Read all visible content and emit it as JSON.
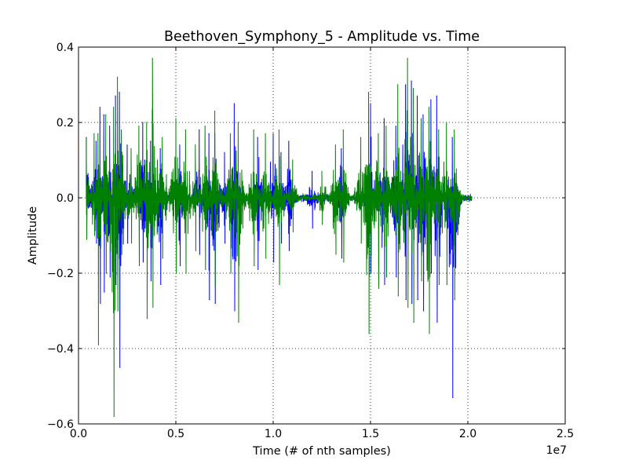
{
  "chart_data": {
    "type": "line",
    "title": "Beethoven_Symphony_5 - Amplitude vs. Time",
    "xlabel": "Time (# of nth samples)",
    "ylabel": "Amplitude",
    "x_offset_label": "1e7",
    "xlim": [
      0,
      25000000
    ],
    "ylim": [
      -0.6,
      0.4
    ],
    "xticks": [
      0,
      5000000,
      10000000,
      15000000,
      20000000,
      25000000
    ],
    "xtick_labels": [
      "0.0",
      "0.5",
      "1.0",
      "1.5",
      "2.0",
      "2.5"
    ],
    "yticks": [
      -0.6,
      -0.4,
      -0.2,
      0.0,
      0.2,
      0.4
    ],
    "ytick_labels": [
      "−0.6",
      "−0.4",
      "−0.2",
      "0.0",
      "0.2",
      "0.4"
    ],
    "grid": true,
    "legend": false,
    "signal_extent": [
      400000,
      20200000
    ],
    "series": [
      {
        "color": "#0000ff",
        "peaks": [
          {
            "x": 400000,
            "min": -0.07,
            "max": 0.16
          },
          {
            "x": 900000,
            "min": -0.12,
            "max": 0.15
          },
          {
            "x": 1100000,
            "min": -0.28,
            "max": 0.24
          },
          {
            "x": 1300000,
            "min": -0.25,
            "max": 0.22
          },
          {
            "x": 1600000,
            "min": -0.21,
            "max": 0.19
          },
          {
            "x": 1900000,
            "min": -0.23,
            "max": 0.27
          },
          {
            "x": 2100000,
            "min": -0.45,
            "max": 0.28
          },
          {
            "x": 2500000,
            "min": -0.12,
            "max": 0.14
          },
          {
            "x": 3300000,
            "min": -0.17,
            "max": 0.2
          },
          {
            "x": 3400000,
            "min": -0.08,
            "max": 0.1
          },
          {
            "x": 3700000,
            "min": -0.22,
            "max": 0.15
          },
          {
            "x": 4200000,
            "min": -0.23,
            "max": 0.13
          },
          {
            "x": 5200000,
            "min": -0.18,
            "max": 0.14
          },
          {
            "x": 6200000,
            "min": -0.15,
            "max": 0.18
          },
          {
            "x": 6700000,
            "min": -0.27,
            "max": 0.17
          },
          {
            "x": 7000000,
            "min": -0.28,
            "max": 0.17
          },
          {
            "x": 7500000,
            "min": -0.12,
            "max": 0.12
          },
          {
            "x": 8000000,
            "min": -0.3,
            "max": 0.25
          },
          {
            "x": 9200000,
            "min": -0.19,
            "max": 0.16
          },
          {
            "x": 10000000,
            "min": -0.17,
            "max": 0.17
          },
          {
            "x": 10400000,
            "min": -0.12,
            "max": 0.12
          },
          {
            "x": 10800000,
            "min": -0.14,
            "max": 0.15
          },
          {
            "x": 12000000,
            "min": -0.08,
            "max": 0.07
          },
          {
            "x": 13500000,
            "min": -0.16,
            "max": 0.13
          },
          {
            "x": 15000000,
            "min": -0.2,
            "max": 0.25
          },
          {
            "x": 15700000,
            "min": -0.23,
            "max": 0.21
          },
          {
            "x": 16300000,
            "min": -0.21,
            "max": 0.19
          },
          {
            "x": 16800000,
            "min": -0.27,
            "max": 0.3
          },
          {
            "x": 17100000,
            "min": -0.28,
            "max": 0.31
          },
          {
            "x": 17400000,
            "min": -0.27,
            "max": 0.27
          },
          {
            "x": 17700000,
            "min": -0.3,
            "max": 0.22
          },
          {
            "x": 18100000,
            "min": -0.2,
            "max": 0.26
          },
          {
            "x": 18400000,
            "min": -0.33,
            "max": 0.27
          },
          {
            "x": 19200000,
            "min": -0.53,
            "max": 0.16
          }
        ]
      },
      {
        "color": "#008000",
        "peaks": [
          {
            "x": 400000,
            "min": -0.11,
            "max": 0.16
          },
          {
            "x": 800000,
            "min": -0.1,
            "max": 0.17
          },
          {
            "x": 1000000,
            "min": -0.39,
            "max": 0.17
          },
          {
            "x": 1400000,
            "min": -0.2,
            "max": 0.22
          },
          {
            "x": 1800000,
            "min": -0.58,
            "max": 0.24
          },
          {
            "x": 2000000,
            "min": -0.3,
            "max": 0.32
          },
          {
            "x": 2200000,
            "min": -0.15,
            "max": 0.18
          },
          {
            "x": 2700000,
            "min": -0.12,
            "max": 0.13
          },
          {
            "x": 3100000,
            "min": -0.18,
            "max": 0.19
          },
          {
            "x": 3500000,
            "min": -0.32,
            "max": 0.2
          },
          {
            "x": 3800000,
            "min": -0.29,
            "max": 0.37
          },
          {
            "x": 4300000,
            "min": -0.16,
            "max": 0.16
          },
          {
            "x": 5000000,
            "min": -0.2,
            "max": 0.21
          },
          {
            "x": 5500000,
            "min": -0.2,
            "max": 0.18
          },
          {
            "x": 6000000,
            "min": -0.14,
            "max": 0.14
          },
          {
            "x": 6500000,
            "min": -0.19,
            "max": 0.19
          },
          {
            "x": 7000000,
            "min": -0.23,
            "max": 0.23
          },
          {
            "x": 7800000,
            "min": -0.2,
            "max": 0.17
          },
          {
            "x": 8200000,
            "min": -0.33,
            "max": 0.2
          },
          {
            "x": 9000000,
            "min": -0.18,
            "max": 0.18
          },
          {
            "x": 9600000,
            "min": -0.16,
            "max": 0.17
          },
          {
            "x": 10300000,
            "min": -0.23,
            "max": 0.18
          },
          {
            "x": 11000000,
            "min": -0.09,
            "max": 0.1
          },
          {
            "x": 12500000,
            "min": -0.07,
            "max": 0.07
          },
          {
            "x": 13200000,
            "min": -0.15,
            "max": 0.14
          },
          {
            "x": 13600000,
            "min": -0.17,
            "max": 0.18
          },
          {
            "x": 14500000,
            "min": -0.12,
            "max": 0.16
          },
          {
            "x": 14900000,
            "min": -0.36,
            "max": 0.28
          },
          {
            "x": 15400000,
            "min": -0.24,
            "max": 0.17
          },
          {
            "x": 15800000,
            "min": -0.21,
            "max": 0.19
          },
          {
            "x": 16400000,
            "min": -0.26,
            "max": 0.3
          },
          {
            "x": 16900000,
            "min": -0.29,
            "max": 0.37
          },
          {
            "x": 17200000,
            "min": -0.33,
            "max": 0.29
          },
          {
            "x": 17600000,
            "min": -0.22,
            "max": 0.21
          },
          {
            "x": 18000000,
            "min": -0.36,
            "max": 0.24
          },
          {
            "x": 18500000,
            "min": -0.23,
            "max": 0.18
          },
          {
            "x": 18900000,
            "min": -0.23,
            "max": 0.2
          },
          {
            "x": 19300000,
            "min": -0.27,
            "max": 0.18
          }
        ]
      }
    ]
  }
}
